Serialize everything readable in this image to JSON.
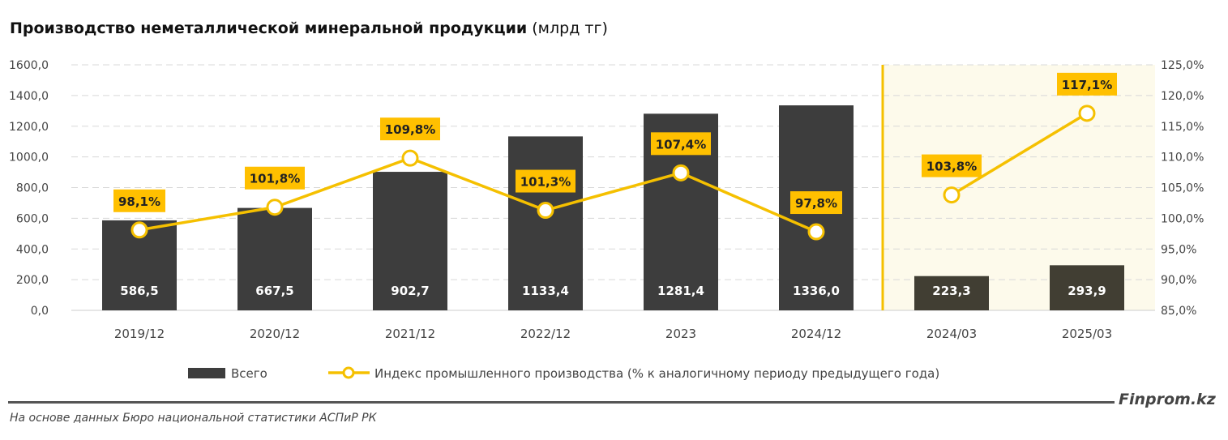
{
  "title": {
    "bold": "Производство неметаллической минеральной продукции",
    "unit": "(млрд тг)"
  },
  "brand": "Finprom.kz",
  "source": "На основе данных Бюро национальной статистики АСПиР РК",
  "colors": {
    "bar": "#3d3d3d",
    "bar_highlight": "#413e33",
    "line": "#f5c000",
    "label_bg": "#ffc000",
    "highlight_bg": "#fdfaeb"
  },
  "chart_data": {
    "type": "bar+line",
    "categories": [
      "2019/12",
      "2020/12",
      "2021/12",
      "2022/12",
      "2023",
      "2024/12",
      "2024/03",
      "2025/03"
    ],
    "series": [
      {
        "name": "Всего",
        "type": "bar",
        "axis": "left",
        "values": [
          586.5,
          667.5,
          902.7,
          1133.4,
          1281.4,
          1336.0,
          223.3,
          293.9
        ],
        "labels": [
          "586,5",
          "667,5",
          "902,7",
          "1133,4",
          "1281,4",
          "1336,0",
          "223,3",
          "293,9"
        ]
      },
      {
        "name": "Индекс промышленного производства (% к аналогичному периоду предыдущего года)",
        "type": "line",
        "axis": "right",
        "values": [
          98.1,
          101.8,
          109.8,
          101.3,
          107.4,
          97.8,
          103.8,
          117.1
        ],
        "labels": [
          "98,1%",
          "101,8%",
          "109,8%",
          "101,3%",
          "107,4%",
          "97,8%",
          "103,8%",
          "117,1%"
        ]
      }
    ],
    "left_axis": {
      "ylim": [
        0,
        1600
      ],
      "ticks": [
        "0,0",
        "200,0",
        "400,0",
        "600,0",
        "800,0",
        "1000,0",
        "1200,0",
        "1400,0",
        "1600,0"
      ]
    },
    "right_axis": {
      "ylim": [
        85,
        125
      ],
      "ticks": [
        "85,0%",
        "90,0%",
        "95,0%",
        "100,0%",
        "105,0%",
        "110,0%",
        "115,0%",
        "120,0%",
        "125,0%"
      ]
    },
    "highlight_from_category": "2024/03",
    "grid": true,
    "legend": "bottom"
  }
}
